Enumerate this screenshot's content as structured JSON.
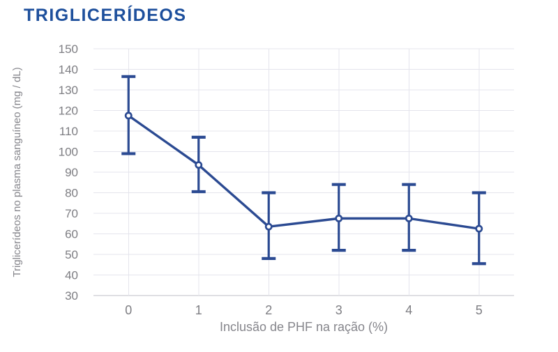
{
  "title": "TRIGLICERÍDEOS",
  "colors": {
    "title": "#1d4f9c",
    "series": "#2b4a92",
    "marker_fill": "#ffffff",
    "grid": "#e4e4ec",
    "axis_line": "#bfbfc7",
    "tick_text": "#7d7d82",
    "axis_title_text": "#85858b",
    "background": "#ffffff"
  },
  "chart_data": {
    "type": "line",
    "title": "TRIGLICERÍDEOS",
    "xlabel": "Inclusão de PHF na ração (%)",
    "ylabel": "Triglicerídeos no plasma sanguíneo (mg / dL)",
    "categories": [
      "0",
      "1",
      "2",
      "3",
      "4",
      "5"
    ],
    "series": [
      {
        "name": "Triglicerídeos",
        "values": [
          117.5,
          93.5,
          63.5,
          67.5,
          67.5,
          62.5
        ],
        "error_upper": [
          136.5,
          107,
          80,
          84,
          84,
          80
        ],
        "error_lower": [
          99,
          80.5,
          48,
          52,
          52,
          45.5
        ]
      }
    ],
    "ylim": [
      30,
      150
    ],
    "y_ticks": [
      150,
      140,
      130,
      120,
      110,
      100,
      90,
      80,
      70,
      60,
      50,
      40,
      30
    ],
    "grid": true,
    "legend": false,
    "marker": "open-circle"
  }
}
